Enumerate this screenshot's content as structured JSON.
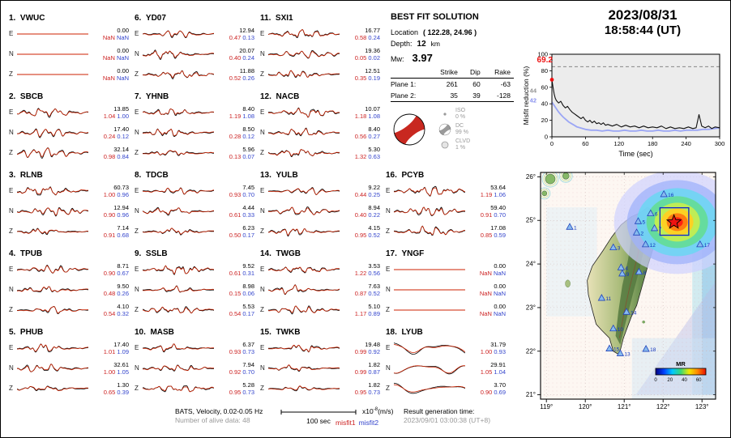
{
  "header": {
    "date": "2023/08/31",
    "time": "18:58:44  (UT)"
  },
  "best_fit": {
    "title": "BEST FIT SOLUTION",
    "location_label": "Location",
    "location_value": "( 122.28,  24.96 )",
    "depth_label": "Depth:",
    "depth_value": "12",
    "depth_unit": "km",
    "mw_label": "Mw:",
    "mw_value": "3.97",
    "plane_table": {
      "col_headers": [
        "Strike",
        "Dip",
        "Rake"
      ],
      "rows": [
        {
          "label": "Plane 1:",
          "values": [
            "261",
            "60",
            "-63"
          ]
        },
        {
          "label": "Plane 2:",
          "values": [
            "35",
            "39",
            "-128"
          ]
        }
      ]
    },
    "decomposition": [
      {
        "name": "ISO",
        "pct": "0 %",
        "glyph": "dot"
      },
      {
        "name": "DC",
        "pct": "99 %",
        "glyph": "beachball"
      },
      {
        "name": "CLVD",
        "pct": "1 %",
        "glyph": "circle"
      }
    ]
  },
  "stations": [
    {
      "num": "1.",
      "name": "VWUC",
      "style": "flat",
      "components": [
        {
          "comp": "E",
          "amp": "0.00",
          "m1": "NaN",
          "m2": "NaN"
        },
        {
          "comp": "N",
          "amp": "0.00",
          "m1": "NaN",
          "m2": "NaN"
        },
        {
          "comp": "Z",
          "amp": "0.00",
          "m1": "NaN",
          "m2": "NaN"
        }
      ]
    },
    {
      "num": "2.",
      "name": "SBCB",
      "components": [
        {
          "comp": "E",
          "amp": "13.85",
          "m1": "1.04",
          "m2": "1.00"
        },
        {
          "comp": "N",
          "amp": "17.40",
          "m1": "0.24",
          "m2": "0.12"
        },
        {
          "comp": "Z",
          "amp": "32.14",
          "m1": "0.98",
          "m2": "0.84"
        }
      ]
    },
    {
      "num": "3.",
      "name": "RLNB",
      "components": [
        {
          "comp": "E",
          "amp": "60.73",
          "m1": "1.00",
          "m2": "0.96"
        },
        {
          "comp": "N",
          "amp": "12.94",
          "m1": "0.90",
          "m2": "0.96"
        },
        {
          "comp": "Z",
          "amp": "7.14",
          "m1": "0.91",
          "m2": "0.68"
        }
      ]
    },
    {
      "num": "4.",
      "name": "TPUB",
      "components": [
        {
          "comp": "E",
          "amp": "8.71",
          "m1": "0.90",
          "m2": "0.67"
        },
        {
          "comp": "N",
          "amp": "9.50",
          "m1": "0.48",
          "m2": "0.26"
        },
        {
          "comp": "Z",
          "amp": "4.10",
          "m1": "0.54",
          "m2": "0.32"
        }
      ]
    },
    {
      "num": "5.",
      "name": "PHUB",
      "components": [
        {
          "comp": "E",
          "amp": "17.40",
          "m1": "1.01",
          "m2": "1.09"
        },
        {
          "comp": "N",
          "amp": "32.61",
          "m1": "1.00",
          "m2": "1.05"
        },
        {
          "comp": "Z",
          "amp": "1.30",
          "m1": "0.65",
          "m2": "0.39"
        }
      ]
    },
    {
      "num": "6.",
      "name": "YD07",
      "components": [
        {
          "comp": "E",
          "amp": "12.94",
          "m1": "0.47",
          "m2": "0.13"
        },
        {
          "comp": "N",
          "amp": "20.07",
          "m1": "0.40",
          "m2": "0.24"
        },
        {
          "comp": "Z",
          "amp": "11.88",
          "m1": "0.52",
          "m2": "0.26"
        }
      ]
    },
    {
      "num": "7.",
      "name": "YHNB",
      "components": [
        {
          "comp": "E",
          "amp": "8.40",
          "m1": "1.19",
          "m2": "1.08"
        },
        {
          "comp": "N",
          "amp": "8.50",
          "m1": "0.28",
          "m2": "0.12"
        },
        {
          "comp": "Z",
          "amp": "5.96",
          "m1": "0.13",
          "m2": "0.07"
        }
      ]
    },
    {
      "num": "8.",
      "name": "TDCB",
      "components": [
        {
          "comp": "E",
          "amp": "7.45",
          "m1": "0.93",
          "m2": "0.70"
        },
        {
          "comp": "N",
          "amp": "4.44",
          "m1": "0.61",
          "m2": "0.33"
        },
        {
          "comp": "Z",
          "amp": "6.23",
          "m1": "0.50",
          "m2": "0.17"
        }
      ]
    },
    {
      "num": "9.",
      "name": "SSLB",
      "components": [
        {
          "comp": "E",
          "amp": "9.52",
          "m1": "0.61",
          "m2": "0.31"
        },
        {
          "comp": "N",
          "amp": "8.98",
          "m1": "0.15",
          "m2": "0.06"
        },
        {
          "comp": "Z",
          "amp": "5.53",
          "m1": "0.54",
          "m2": "0.17"
        }
      ]
    },
    {
      "num": "10.",
      "name": "MASB",
      "components": [
        {
          "comp": "E",
          "amp": "6.37",
          "m1": "0.93",
          "m2": "0.73"
        },
        {
          "comp": "N",
          "amp": "7.94",
          "m1": "0.92",
          "m2": "0.70"
        },
        {
          "comp": "Z",
          "amp": "5.28",
          "m1": "0.95",
          "m2": "0.73"
        }
      ]
    },
    {
      "num": "11.",
      "name": "SXI1",
      "components": [
        {
          "comp": "E",
          "amp": "16.77",
          "m1": "0.58",
          "m2": "0.24"
        },
        {
          "comp": "N",
          "amp": "19.36",
          "m1": "0.05",
          "m2": "0.02"
        },
        {
          "comp": "Z",
          "amp": "12.51",
          "m1": "0.35",
          "m2": "0.19"
        }
      ]
    },
    {
      "num": "12.",
      "name": "NACB",
      "components": [
        {
          "comp": "E",
          "amp": "10.07",
          "m1": "1.18",
          "m2": "1.08"
        },
        {
          "comp": "N",
          "amp": "8.40",
          "m1": "0.56",
          "m2": "0.27"
        },
        {
          "comp": "Z",
          "amp": "5.30",
          "m1": "1.32",
          "m2": "0.63"
        }
      ]
    },
    {
      "num": "13.",
      "name": "YULB",
      "components": [
        {
          "comp": "E",
          "amp": "9.22",
          "m1": "0.44",
          "m2": "0.25"
        },
        {
          "comp": "N",
          "amp": "8.94",
          "m1": "0.40",
          "m2": "0.22"
        },
        {
          "comp": "Z",
          "amp": "4.15",
          "m1": "0.95",
          "m2": "0.52"
        }
      ]
    },
    {
      "num": "14.",
      "name": "TWGB",
      "components": [
        {
          "comp": "E",
          "amp": "3.53",
          "m1": "1.22",
          "m2": "0.56"
        },
        {
          "comp": "N",
          "amp": "7.63",
          "m1": "0.87",
          "m2": "0.52"
        },
        {
          "comp": "Z",
          "amp": "5.10",
          "m1": "1.17",
          "m2": "0.89"
        }
      ]
    },
    {
      "num": "15.",
      "name": "TWKB",
      "components": [
        {
          "comp": "E",
          "amp": "19.48",
          "m1": "0.99",
          "m2": "0.92"
        },
        {
          "comp": "N",
          "amp": "1.82",
          "m1": "0.99",
          "m2": "0.87"
        },
        {
          "comp": "Z",
          "amp": "1.82",
          "m1": "0.95",
          "m2": "0.73"
        }
      ]
    },
    {
      "num": "16.",
      "name": "PCYB",
      "components": [
        {
          "comp": "E",
          "amp": "53.64",
          "m1": "1.19",
          "m2": "1.06"
        },
        {
          "comp": "N",
          "amp": "59.40",
          "m1": "0.91",
          "m2": "0.70"
        },
        {
          "comp": "Z",
          "amp": "17.08",
          "m1": "0.85",
          "m2": "0.59"
        }
      ]
    },
    {
      "num": "17.",
      "name": "YNGF",
      "style": "flat",
      "components": [
        {
          "comp": "E",
          "amp": "0.00",
          "m1": "NaN",
          "m2": "NaN"
        },
        {
          "comp": "N",
          "amp": "0.00",
          "m1": "NaN",
          "m2": "NaN"
        },
        {
          "comp": "Z",
          "amp": "0.00",
          "m1": "NaN",
          "m2": "NaN"
        }
      ]
    },
    {
      "num": "18.",
      "name": "LYUB",
      "style": "lp",
      "components": [
        {
          "comp": "E",
          "amp": "31.79",
          "m1": "1.00",
          "m2": "0.93"
        },
        {
          "comp": "N",
          "amp": "29.91",
          "m1": "1.05",
          "m2": "1.04"
        },
        {
          "comp": "Z",
          "amp": "3.70",
          "m1": "0.90",
          "m2": "0.69"
        }
      ]
    }
  ],
  "chart_data": [
    {
      "id": "misfit-reduction",
      "type": "line",
      "title": "",
      "xlabel": "Time (sec)",
      "ylabel": "Misfit reduction (%)",
      "xlim": [
        0,
        300
      ],
      "ylim": [
        0,
        100
      ],
      "xticks": [
        0,
        60,
        120,
        180,
        240,
        300
      ],
      "yticks": [
        0,
        20,
        40,
        60,
        80,
        100
      ],
      "grid": false,
      "legend_position": "none",
      "dashed_reference": 85,
      "peak_label": "69.2",
      "peak_point": [
        0,
        69.2
      ],
      "axis_annotations": [
        {
          "text": "44",
          "value": 56,
          "color": "#909090"
        },
        {
          "text": "42",
          "value": 44,
          "color": "#8890ee"
        }
      ],
      "series": [
        {
          "name": "misfit-reduction-current",
          "color": "#111111",
          "width": 1.1,
          "points": [
            [
              0,
              69.2
            ],
            [
              2,
              60
            ],
            [
              4,
              52
            ],
            [
              6,
              47
            ],
            [
              8,
              44
            ],
            [
              12,
              41
            ],
            [
              16,
              43
            ],
            [
              20,
              38
            ],
            [
              24,
              35
            ],
            [
              28,
              37
            ],
            [
              32,
              33
            ],
            [
              36,
              30
            ],
            [
              40,
              28
            ],
            [
              44,
              26
            ],
            [
              48,
              24
            ],
            [
              52,
              22
            ],
            [
              56,
              24
            ],
            [
              60,
              20
            ],
            [
              64,
              18
            ],
            [
              68,
              20
            ],
            [
              72,
              17
            ],
            [
              76,
              19
            ],
            [
              80,
              16
            ],
            [
              84,
              17
            ],
            [
              88,
              15
            ],
            [
              92,
              17
            ],
            [
              96,
              14
            ],
            [
              100,
              15
            ],
            [
              108,
              13
            ],
            [
              116,
              15
            ],
            [
              124,
              12
            ],
            [
              132,
              14
            ],
            [
              140,
              12
            ],
            [
              148,
              13
            ],
            [
              156,
              11
            ],
            [
              164,
              13
            ],
            [
              172,
              11
            ],
            [
              180,
              12
            ],
            [
              188,
              11
            ],
            [
              196,
              13
            ],
            [
              204,
              10
            ],
            [
              212,
              12
            ],
            [
              220,
              10
            ],
            [
              228,
              11
            ],
            [
              236,
              10
            ],
            [
              244,
              12
            ],
            [
              252,
              10
            ],
            [
              258,
              11
            ],
            [
              263,
              27
            ],
            [
              268,
              13
            ],
            [
              274,
              11
            ],
            [
              280,
              13
            ],
            [
              286,
              10
            ],
            [
              292,
              12
            ],
            [
              300,
              11
            ]
          ]
        },
        {
          "name": "misfit-reduction-secondary",
          "color": "#9ba6f5",
          "width": 1.8,
          "points": [
            [
              0,
              42
            ],
            [
              4,
              38
            ],
            [
              8,
              34
            ],
            [
              12,
              30
            ],
            [
              16,
              27
            ],
            [
              20,
              24
            ],
            [
              25,
              21
            ],
            [
              30,
              18
            ],
            [
              35,
              16
            ],
            [
              40,
              14
            ],
            [
              45,
              12
            ],
            [
              50,
              11
            ],
            [
              55,
              10
            ],
            [
              60,
              9
            ],
            [
              70,
              8
            ],
            [
              80,
              8
            ],
            [
              90,
              7
            ],
            [
              100,
              8
            ],
            [
              110,
              7
            ],
            [
              120,
              7
            ],
            [
              130,
              8
            ],
            [
              140,
              7
            ],
            [
              150,
              7
            ],
            [
              160,
              8
            ],
            [
              170,
              7
            ],
            [
              180,
              7
            ],
            [
              190,
              8
            ],
            [
              200,
              7
            ],
            [
              210,
              7
            ],
            [
              220,
              8
            ],
            [
              230,
              7
            ],
            [
              240,
              8
            ],
            [
              250,
              8
            ],
            [
              260,
              8
            ],
            [
              270,
              9
            ],
            [
              280,
              9
            ],
            [
              290,
              10
            ],
            [
              300,
              11
            ]
          ]
        }
      ]
    }
  ],
  "map": {
    "lon_range": [
      118.85,
      123.35
    ],
    "lat_range": [
      20.9,
      26.1
    ],
    "lon_ticks": [
      119,
      120,
      121,
      122,
      123
    ],
    "lat_ticks": [
      21,
      22,
      23,
      24,
      25,
      26
    ],
    "degree_symbol": "°",
    "epicenter": {
      "lon": 122.28,
      "lat": 24.96
    },
    "search_box": {
      "lon_min": 121.92,
      "lon_max": 122.66,
      "lat_min": 24.66,
      "lat_max": 25.29
    },
    "stations": [
      {
        "n": "1",
        "lon": 119.6,
        "lat": 24.85
      },
      {
        "n": "2",
        "lon": 121.32,
        "lat": 24.72
      },
      {
        "n": "3",
        "lon": 120.72,
        "lat": 24.38
      },
      {
        "n": "4",
        "lon": 120.92,
        "lat": 23.92
      },
      {
        "n": "5",
        "lon": 121.36,
        "lat": 24.98
      },
      {
        "n": "6",
        "lon": 121.68,
        "lat": 25.16
      },
      {
        "n": "7",
        "lon": 121.78,
        "lat": 24.82
      },
      {
        "n": "8",
        "lon": 121.38,
        "lat": 23.82
      },
      {
        "n": "9",
        "lon": 120.95,
        "lat": 23.78
      },
      {
        "n": "10",
        "lon": 120.72,
        "lat": 22.52
      },
      {
        "n": "11",
        "lon": 120.42,
        "lat": 23.22
      },
      {
        "n": "12",
        "lon": 121.55,
        "lat": 24.45
      },
      {
        "n": "13",
        "lon": 120.9,
        "lat": 21.95
      },
      {
        "n": "14",
        "lon": 121.06,
        "lat": 22.9
      },
      {
        "n": "15",
        "lon": 120.62,
        "lat": 22.06
      },
      {
        "n": "16",
        "lon": 122.02,
        "lat": 25.6
      },
      {
        "n": "17",
        "lon": 122.95,
        "lat": 24.45
      },
      {
        "n": "18",
        "lon": 121.56,
        "lat": 22.05
      }
    ],
    "colorbar": {
      "label": "MR",
      "tick_labels": [
        "0",
        "20",
        "40",
        "60"
      ],
      "colors": [
        "#00007f",
        "#0040ff",
        "#00c8ff",
        "#38d878",
        "#f0e800",
        "#ff8800",
        "#e81000"
      ]
    }
  },
  "footer": {
    "filter_line": "BATS, Velocity, 0.02-0.05 Hz",
    "alive_line": "Number of alive data: 48",
    "scalebar_label": "100 sec",
    "amp_scale_prefix": "x10",
    "amp_scale_exp": "-8",
    "amp_scale_unit": "(m/s)",
    "legend": [
      {
        "text": "misfit1",
        "color": "#cc2222"
      },
      {
        "text": "misfit2",
        "color": "#3344cc"
      }
    ],
    "result_label": "Result generation time:",
    "result_value": "2023/09/01 03:00:38 (UT+8)"
  },
  "colors": {
    "observed": "#000000",
    "synthetic": "#cc2200",
    "misfit1": "#cc2222",
    "misfit2": "#3344cc",
    "highlight": "#ee1111"
  }
}
